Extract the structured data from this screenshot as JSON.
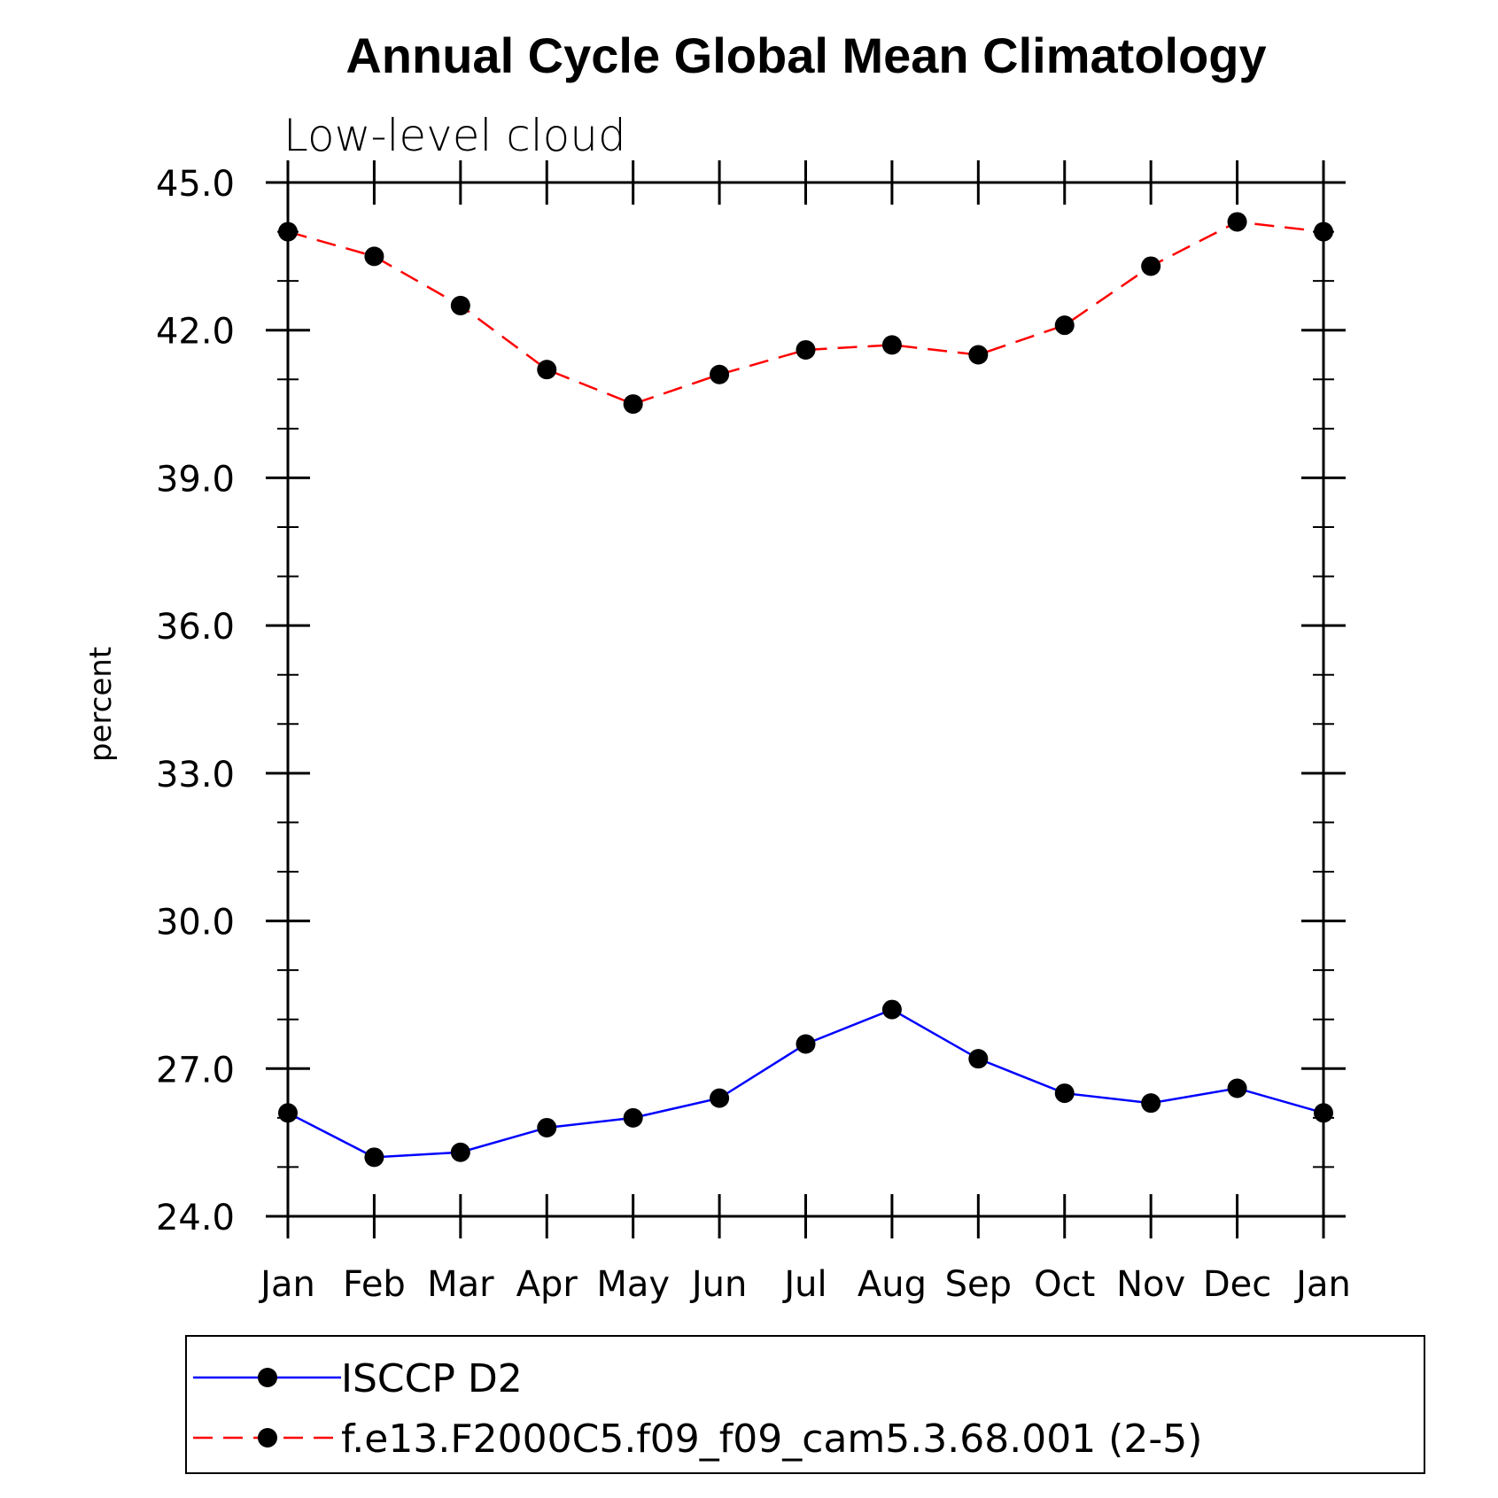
{
  "chart_data": {
    "type": "line",
    "title": "Annual Cycle Global Mean Climatology",
    "subtitle": "Low-level cloud",
    "ylabel": "percent",
    "xlabel": "",
    "categories": [
      "Jan",
      "Feb",
      "Mar",
      "Apr",
      "May",
      "Jun",
      "Jul",
      "Aug",
      "Sep",
      "Oct",
      "Nov",
      "Dec",
      "Jan"
    ],
    "ylim": [
      24.0,
      45.0
    ],
    "yticks": [
      "24.0",
      "27.0",
      "30.0",
      "33.0",
      "36.0",
      "39.0",
      "42.0",
      "45.0"
    ],
    "series": [
      {
        "name": "ISCCP D2",
        "color": "#0000ff",
        "line_style": "solid",
        "marker": "filled-circle",
        "values": [
          26.1,
          25.2,
          25.3,
          25.8,
          26.0,
          26.4,
          27.5,
          28.2,
          27.2,
          26.5,
          26.3,
          26.6,
          26.1
        ]
      },
      {
        "name": "f.e13.F2000C5.f09_f09_cam5.3.68.001 (2-5)",
        "color": "#ff0000",
        "line_style": "dashed",
        "marker": "filled-circle",
        "values": [
          44.0,
          43.5,
          42.5,
          41.2,
          40.5,
          41.1,
          41.6,
          41.7,
          41.5,
          42.1,
          43.3,
          44.2,
          44.0
        ]
      }
    ],
    "grid": false,
    "legend_position": "bottom"
  }
}
